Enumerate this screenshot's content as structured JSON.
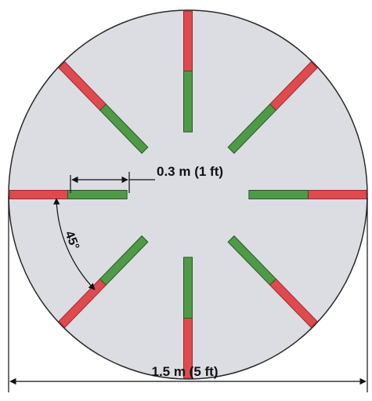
{
  "colors": {
    "disk_fill": "#dcdde3",
    "disk_stroke": "#2a2a2a",
    "bar_red": "#df4a4f",
    "bar_red_dark": "#9b2a2e",
    "bar_green": "#4f9a46",
    "bar_green_dark": "#275a24",
    "dimension_line": "#111111"
  },
  "bars": {
    "count": 8,
    "spacing_deg": 45,
    "colors_outer_to_inner": [
      "red",
      "green"
    ]
  },
  "dimensions": {
    "bar_length_label": "0.3 m (1 ft)",
    "angle_label": "45°",
    "diameter_label": "1.5 m (5 ft)"
  }
}
